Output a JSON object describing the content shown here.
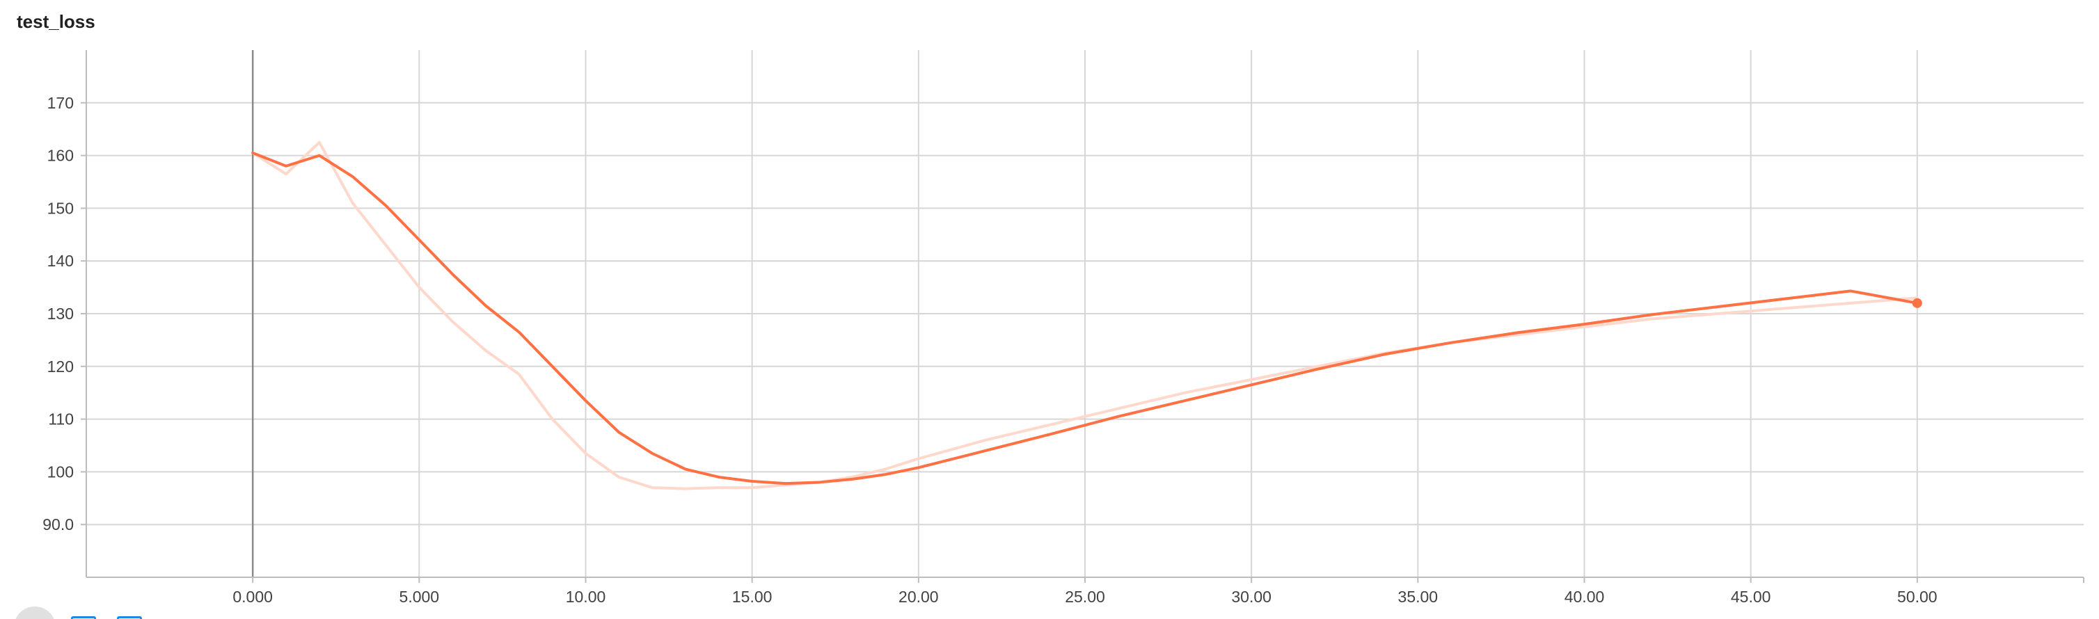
{
  "title": "test_loss",
  "chart_data": {
    "type": "line",
    "title": "test_loss",
    "xlabel": "",
    "ylabel": "",
    "xlim": [
      -5,
      55
    ],
    "ylim": [
      80,
      180
    ],
    "x_ticks": [
      0,
      5,
      10,
      15,
      20,
      25,
      30,
      35,
      40,
      45,
      50
    ],
    "x_tick_labels": [
      "0.000",
      "5.000",
      "10.00",
      "15.00",
      "20.00",
      "25.00",
      "30.00",
      "35.00",
      "40.00",
      "45.00",
      "50.00"
    ],
    "y_ticks": [
      90,
      100,
      110,
      120,
      130,
      140,
      150,
      160,
      170
    ],
    "y_tick_labels": [
      "90.0",
      "100",
      "110",
      "120",
      "130",
      "140",
      "150",
      "160",
      "170"
    ],
    "grid": true,
    "series": [
      {
        "color": "#ff7043",
        "raw_color": "#ffd8cc",
        "x": [
          0,
          1,
          2,
          3,
          4,
          5,
          6,
          7,
          8,
          9,
          10,
          11,
          12,
          13,
          14,
          15,
          16,
          17,
          18,
          19,
          20,
          22,
          24,
          26,
          28,
          30,
          32,
          34,
          36,
          38,
          40,
          42,
          44,
          46,
          48,
          50
        ],
        "raw_values": [
          160.5,
          156.5,
          162.5,
          151,
          143,
          135,
          128.5,
          123,
          118.5,
          110,
          103.5,
          99,
          97,
          96.8,
          97,
          97,
          97.5,
          98,
          99,
          100.5,
          102.5,
          106,
          109,
          112,
          115,
          117.5,
          120,
          122.5,
          124.5,
          126,
          127.5,
          129,
          130,
          131,
          132,
          133
        ],
        "smoothed_values": [
          160.5,
          158,
          160,
          156,
          150.5,
          144,
          137.5,
          131.5,
          126.5,
          120,
          113.5,
          107.5,
          103.5,
          100.5,
          99,
          98.2,
          97.8,
          98,
          98.6,
          99.5,
          100.8,
          104,
          107.2,
          110.5,
          113.5,
          116.5,
          119.5,
          122.3,
          124.5,
          126.4,
          128,
          129.8,
          131.3,
          132.8,
          134.3,
          132
        ]
      }
    ]
  }
}
